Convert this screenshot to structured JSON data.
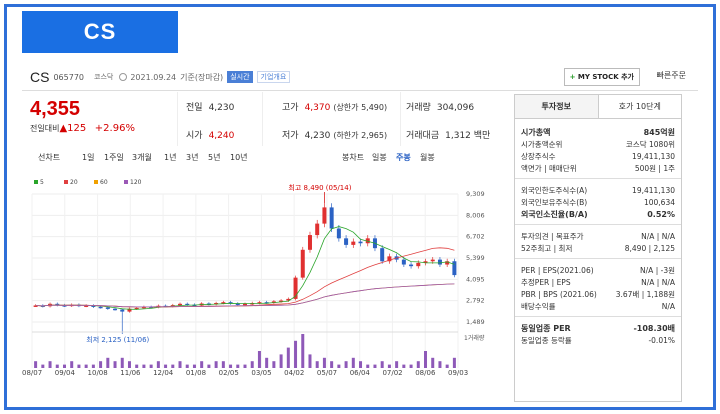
{
  "header_title": "CS",
  "stock": {
    "name": "CS",
    "code": "065770",
    "market": "코스닥",
    "date": "2021.09.24",
    "basis": "기준(장마감)",
    "realtime": "실시간",
    "company_info": "기업개요",
    "mystock": "MY STOCK 추가",
    "quick_order": "빠른주문"
  },
  "price": {
    "current": "4,355",
    "change_label": "전일대비",
    "change_value": "125",
    "change_pct": "+2.96%"
  },
  "info": {
    "prev_label": "전일",
    "prev_value": "4,230",
    "high_label": "고가",
    "high_value": "4,370",
    "upper_note": "(상한가 5,490)",
    "volume_label": "거래량",
    "volume_value": "304,096",
    "open_label": "시가",
    "open_value": "4,240",
    "low_label": "저가",
    "low_value": "4,230",
    "lower_note": "(하한가 2,965)",
    "amount_label": "거래대금",
    "amount_value": "1,312 백만"
  },
  "period_tabs": [
    "선차트",
    "1일",
    "1주일",
    "3개월",
    "1년",
    "3년",
    "5년",
    "10년"
  ],
  "candle_tabs": [
    "봉차트",
    "일봉",
    "주봉",
    "월봉"
  ],
  "legend": [
    {
      "label": "5",
      "color": "#2aa52a"
    },
    {
      "label": "20",
      "color": "#e04040"
    },
    {
      "label": "60",
      "color": "#f0a000"
    },
    {
      "label": "120",
      "color": "#9b59b6"
    }
  ],
  "chart_data": {
    "type": "candlestick",
    "y_ticks": [
      "9,309",
      "8,006",
      "6,702",
      "5,399",
      "4,095",
      "2,792",
      "1,489"
    ],
    "x_ticks": [
      "08/07",
      "09/04",
      "10/08",
      "11/06",
      "12/04",
      "01/08",
      "02/05",
      "03/05",
      "04/02",
      "05/07",
      "06/04",
      "07/02",
      "08/06",
      "09/03"
    ],
    "high_annotation": "최고 8,490 (05/14)",
    "low_annotation": "최저 2,125 (11/06)",
    "volume_label": "1거래량",
    "ylim": [
      1489,
      9309
    ],
    "candles": [
      2500,
      2450,
      2600,
      2520,
      2480,
      2550,
      2470,
      2500,
      2420,
      2380,
      2300,
      2250,
      2125,
      2300,
      2350,
      2420,
      2400,
      2480,
      2450,
      2520,
      2600,
      2550,
      2500,
      2620,
      2580,
      2650,
      2700,
      2620,
      2550,
      2600,
      2650,
      2700,
      2680,
      2750,
      2800,
      2900,
      4200,
      5900,
      6800,
      7500,
      8490,
      7200,
      6600,
      6200,
      6400,
      6300,
      6600,
      6000,
      5200,
      5500,
      5300,
      5000,
      4900,
      5100,
      5200,
      5300,
      5000,
      5200,
      4355
    ],
    "volume": [
      2,
      1,
      2,
      1,
      1,
      2,
      1,
      1,
      1,
      2,
      3,
      2,
      3,
      2,
      1,
      1,
      1,
      2,
      1,
      1,
      2,
      1,
      1,
      2,
      1,
      2,
      2,
      1,
      1,
      1,
      2,
      5,
      3,
      2,
      4,
      6,
      8,
      10,
      4,
      2,
      3,
      2,
      1,
      2,
      3,
      2,
      1,
      1,
      2,
      1,
      2,
      1,
      1,
      2,
      5,
      3,
      2,
      1,
      3
    ]
  },
  "side": {
    "tab_active": "투자정보",
    "tab_other": "호가 10단계",
    "market_cap_label": "시가총액",
    "market_cap_value": "845억원",
    "rank_label": "시가총액순위",
    "rank_value": "코스닥 1080위",
    "shares_label": "상장주식수",
    "shares_value": "19,411,130",
    "par_label": "액면가 | 매매단위",
    "par_value": "500원 | 1주",
    "foreign_limit_label": "외국인한도주식수(A)",
    "foreign_limit_value": "19,411,130",
    "foreign_hold_label": "외국인보유주식수(B)",
    "foreign_hold_value": "100,634",
    "foreign_ratio_label": "외국인소진율(B/A)",
    "foreign_ratio_value": "0.52%",
    "opinion_label": "투자의견 | 목표주가",
    "opinion_value": "N/A | N/A",
    "w52_label": "52주최고 | 최저",
    "w52_value": "8,490 | 2,125",
    "per_label": "PER | EPS(2021.06)",
    "per_value": "N/A | -3원",
    "est_label": "추정PER | EPS",
    "est_value": "N/A | N/A",
    "pbr_label": "PBR | BPS (2021.06)",
    "pbr_value": "3.67배 | 1,188원",
    "div_label": "배당수익률",
    "div_value": "N/A",
    "ind_per_label": "동일업종 PER",
    "ind_per_value": "-108.30배",
    "ind_rate_label": "동일업종 등락률",
    "ind_rate_value": "-0.01%"
  }
}
